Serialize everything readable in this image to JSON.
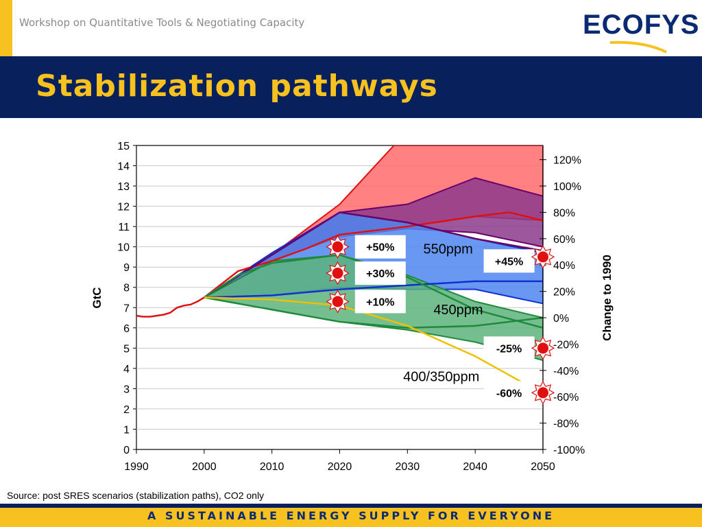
{
  "header": {
    "workshop_text": "Workshop on Quantitative Tools & Negotiating Capacity",
    "logo": {
      "eco": "ECO",
      "fys": "FYS"
    }
  },
  "title": "Stabilization pathways",
  "source_note": "Source: post SRES scenarios (stabilization paths), CO2 only",
  "footer": "A SUSTAINABLE ENERGY SUPPLY FOR EVERYONE",
  "colors": {
    "navy": "#08205b",
    "yellow": "#f7c21f",
    "red_band": "#ff6b6b",
    "purple_band": "#8c3a8c",
    "blue_band": "#4f86f0",
    "green_band": "#5db37c",
    "red_line": "#e01010",
    "purple_line": "#6a006a",
    "blue_line": "#1030d0",
    "green_line": "#1f8a3a",
    "yellow_line": "#f0c000"
  },
  "chart_data": {
    "type": "area",
    "ylabel": "GtC",
    "y2label": "Change to 1990",
    "x_ticks": [
      1990,
      2000,
      2010,
      2020,
      2030,
      2040,
      2050
    ],
    "xlim": [
      1990,
      2050
    ],
    "ylim": [
      0,
      15
    ],
    "y_ticks": [
      0,
      1,
      2,
      3,
      4,
      5,
      6,
      7,
      8,
      9,
      10,
      11,
      12,
      13,
      14,
      15
    ],
    "y2_ticks": [
      "120%",
      "100%",
      "80%",
      "60%",
      "40%",
      "20%",
      "0%",
      "-20%",
      "-40%",
      "-60%",
      "-80%",
      "-100%"
    ],
    "y2_values": [
      120,
      100,
      80,
      60,
      40,
      20,
      0,
      -20,
      -40,
      -60,
      -80,
      -100
    ],
    "y2_base": 6.5,
    "grid": true,
    "historical": {
      "x": [
        1990,
        1991,
        1992,
        1993,
        1994,
        1995,
        1996,
        1997,
        1998,
        1999,
        2000
      ],
      "y": [
        6.6,
        6.55,
        6.55,
        6.6,
        6.65,
        6.75,
        7.0,
        7.1,
        7.15,
        7.3,
        7.5
      ]
    },
    "bands": [
      {
        "color": "red",
        "upper": {
          "x": [
            2000,
            2010,
            2020,
            2028,
            2029,
            2050
          ],
          "y": [
            7.5,
            9.6,
            12.1,
            15,
            15,
            15
          ]
        },
        "lower": {
          "x": [
            2000,
            2010,
            2020,
            2030,
            2040,
            2050
          ],
          "y": [
            7.5,
            9.3,
            10.6,
            11.0,
            11.5,
            11.3
          ]
        }
      },
      {
        "color": "purple",
        "upper": {
          "x": [
            2000,
            2010,
            2020,
            2030,
            2040,
            2050
          ],
          "y": [
            7.5,
            9.6,
            11.7,
            12.1,
            13.4,
            12.5
          ]
        },
        "lower": {
          "x": [
            2000,
            2010,
            2020,
            2030,
            2040,
            2050
          ],
          "y": [
            7.5,
            9.3,
            10.5,
            10.9,
            10.7,
            10.0
          ]
        }
      },
      {
        "color": "blue",
        "upper": {
          "x": [
            2000,
            2010,
            2020,
            2030,
            2040,
            2050
          ],
          "y": [
            7.5,
            9.7,
            11.7,
            11.2,
            10.4,
            9.7
          ]
        },
        "lower": {
          "x": [
            2000,
            2010,
            2020,
            2030,
            2040,
            2050
          ],
          "y": [
            7.5,
            7.6,
            8.0,
            7.9,
            7.9,
            7.2
          ]
        }
      },
      {
        "color": "green",
        "upper": {
          "x": [
            2000,
            2010,
            2020,
            2030,
            2040,
            2050
          ],
          "y": [
            7.5,
            9.3,
            9.6,
            8.6,
            7.3,
            6.5
          ]
        },
        "lower": {
          "x": [
            2000,
            2010,
            2020,
            2030,
            2040,
            2050
          ],
          "y": [
            7.5,
            6.9,
            6.3,
            5.9,
            5.3,
            4.4
          ]
        }
      }
    ],
    "lines": [
      {
        "name": "red",
        "x": [
          2000,
          2005,
          2010,
          2015,
          2020,
          2030,
          2040,
          2045,
          2050
        ],
        "y": [
          7.5,
          8.8,
          9.3,
          9.9,
          10.6,
          11.0,
          11.5,
          11.7,
          11.3
        ]
      },
      {
        "name": "purple",
        "x": [
          2000,
          2010,
          2020,
          2030,
          2040,
          2050
        ],
        "y": [
          7.5,
          9.6,
          11.7,
          11.2,
          10.4,
          9.8
        ]
      },
      {
        "name": "blue",
        "x": [
          2000,
          2010,
          2020,
          2030,
          2040,
          2050
        ],
        "y": [
          7.5,
          7.6,
          7.9,
          8.1,
          8.3,
          8.3
        ]
      },
      {
        "name": "green_mid",
        "x": [
          2000,
          2010,
          2020,
          2030,
          2040,
          2050
        ],
        "y": [
          7.5,
          6.9,
          6.3,
          6.0,
          6.1,
          6.5
        ]
      },
      {
        "name": "green_up",
        "x": [
          2000,
          2005,
          2010,
          2020,
          2030,
          2040,
          2050
        ],
        "y": [
          7.5,
          8.6,
          9.2,
          9.6,
          8.5,
          6.9,
          6.0
        ]
      },
      {
        "name": "yellow",
        "x": [
          2000,
          2010,
          2020,
          2030,
          2040,
          2047
        ],
        "y": [
          7.5,
          7.4,
          7.1,
          6.1,
          4.6,
          3.3
        ]
      }
    ],
    "annotations": [
      {
        "text": "+50%",
        "x": 2026,
        "y": 10.0,
        "boxed": true
      },
      {
        "text": "+30%",
        "x": 2026,
        "y": 8.7,
        "boxed": true
      },
      {
        "text": "+10%",
        "x": 2026,
        "y": 7.3,
        "boxed": true
      },
      {
        "text": "+45%",
        "x": 2045,
        "y": 9.3,
        "boxed": true
      },
      {
        "text": "-25%",
        "x": 2045,
        "y": 5.0,
        "boxed": true
      },
      {
        "text": "-60%",
        "x": 2045,
        "y": 2.8,
        "boxed": true
      },
      {
        "text": "550ppm",
        "x": 2036,
        "y": 9.9,
        "boxed": false
      },
      {
        "text": "450ppm",
        "x": 2037.5,
        "y": 6.9,
        "boxed": false
      },
      {
        "text": "400/350ppm",
        "x": 2035,
        "y": 3.6,
        "boxed": false
      }
    ],
    "markers": [
      {
        "x": 2019.7,
        "y": 10.0
      },
      {
        "x": 2019.7,
        "y": 8.7
      },
      {
        "x": 2019.7,
        "y": 7.3
      },
      {
        "x": 2050,
        "y": 9.5
      },
      {
        "x": 2050,
        "y": 5.0
      },
      {
        "x": 2050,
        "y": 2.8
      }
    ]
  }
}
